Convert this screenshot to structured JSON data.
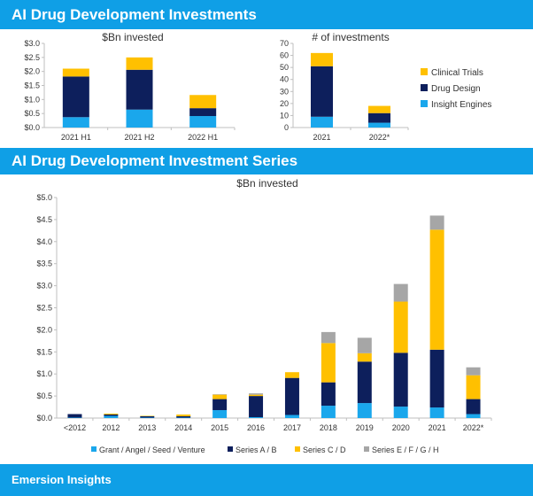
{
  "header": {
    "title": "AI Drug Development Investments",
    "section2_title": "AI Drug Development Investment Series",
    "footer": "Emersion Insights"
  },
  "colors": {
    "banner": "#0f9fe6",
    "insight_engines": "#1aa7ec",
    "drug_design": "#0d1f5c",
    "clinical_trials": "#ffc000",
    "grant_seed": "#1aa7ec",
    "series_ab": "#0d1f5c",
    "series_cd": "#ffc000",
    "series_efgh": "#a6a6a6",
    "axis": "#bfbfbf"
  },
  "chart_data": [
    {
      "type": "bar",
      "stacked": true,
      "title": "$Bn invested",
      "categories": [
        "2021 H1",
        "2021 H2",
        "2022 H1"
      ],
      "ylim": [
        0,
        3.0
      ],
      "yticks": [
        "$0.0",
        "$0.5",
        "$1.0",
        "$1.5",
        "$2.0",
        "$2.5",
        "$3.0"
      ],
      "series": [
        {
          "name": "Insight Engines",
          "values": [
            0.37,
            0.64,
            0.41
          ]
        },
        {
          "name": "Drug Design",
          "values": [
            1.45,
            1.42,
            0.28
          ]
        },
        {
          "name": "Clinical Trials",
          "values": [
            0.28,
            0.44,
            0.47
          ]
        }
      ]
    },
    {
      "type": "bar",
      "stacked": true,
      "title": "# of investments",
      "categories": [
        "2021",
        "2022*"
      ],
      "ylim": [
        0,
        70
      ],
      "yticks": [
        "0",
        "10",
        "20",
        "30",
        "40",
        "50",
        "60",
        "70"
      ],
      "legend": "right",
      "series": [
        {
          "name": "Insight Engines",
          "values": [
            9,
            4
          ]
        },
        {
          "name": "Drug Design",
          "values": [
            42,
            8
          ]
        },
        {
          "name": "Clinical Trials",
          "values": [
            11,
            6
          ]
        }
      ]
    },
    {
      "type": "bar",
      "stacked": true,
      "title": "$Bn invested",
      "categories": [
        "<2012",
        "2012",
        "2013",
        "2014",
        "2015",
        "2016",
        "2017",
        "2018",
        "2019",
        "2020",
        "2021",
        "2022*"
      ],
      "ylim": [
        0,
        5.0
      ],
      "yticks": [
        "$0.0",
        "$0.5",
        "$1.0",
        "$1.5",
        "$2.0",
        "$2.5",
        "$3.0",
        "$3.5",
        "$4.0",
        "$4.5",
        "$5.0"
      ],
      "legend": "bottom",
      "series": [
        {
          "name": "Grant / Angel / Seed / Venture",
          "values": [
            0.01,
            0.05,
            0.01,
            0.01,
            0.18,
            0.02,
            0.07,
            0.28,
            0.34,
            0.26,
            0.24,
            0.09
          ]
        },
        {
          "name": "Series A / B",
          "values": [
            0.08,
            0.03,
            0.03,
            0.03,
            0.25,
            0.48,
            0.84,
            0.53,
            0.94,
            1.22,
            1.31,
            0.34
          ]
        },
        {
          "name": "Series C / D",
          "values": [
            0.0,
            0.02,
            0.01,
            0.04,
            0.1,
            0.03,
            0.13,
            0.89,
            0.19,
            1.16,
            2.72,
            0.54
          ]
        },
        {
          "name": "Series E / F / G / H",
          "values": [
            0.0,
            0.0,
            0.0,
            0.0,
            0.01,
            0.03,
            0.0,
            0.25,
            0.35,
            0.4,
            0.32,
            0.18
          ]
        }
      ]
    }
  ]
}
